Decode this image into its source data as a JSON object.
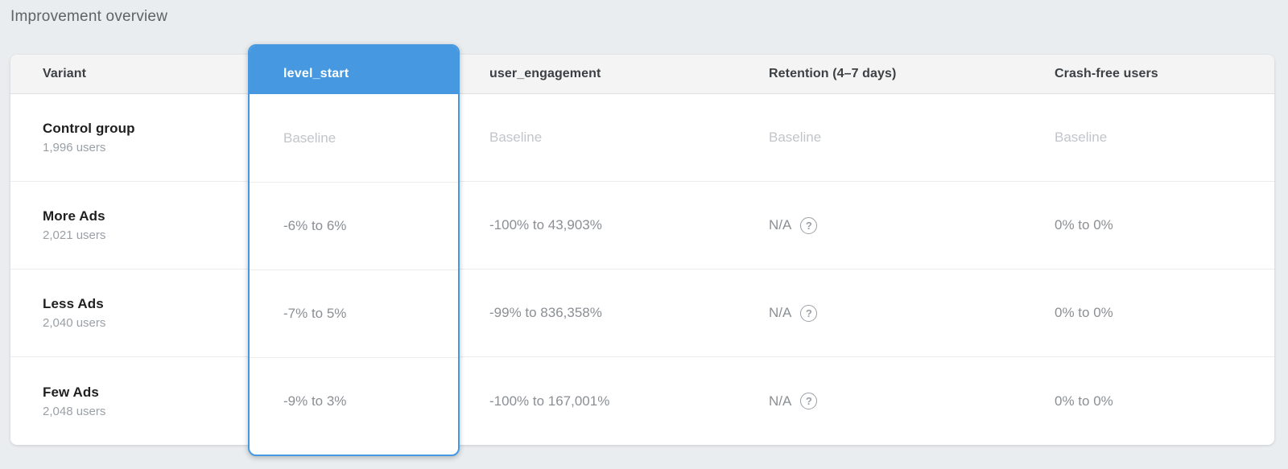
{
  "page": {
    "title": "Improvement overview"
  },
  "colors": {
    "accent_blue": "#4699e0",
    "page_background": "#e9edef",
    "header_row_background": "#f4f4f5"
  },
  "icons": {
    "help_glyph": "?"
  },
  "table": {
    "selected_metric": "level_start",
    "columns": {
      "variant": "Variant",
      "level_start": "level_start",
      "user_engagement": "user_engagement",
      "retention": "Retention (4–7 days)",
      "crash_free": "Crash-free users"
    },
    "rows": [
      {
        "variant": "Control group",
        "users": "1,996 users",
        "level_start": "Baseline",
        "user_engagement": "Baseline",
        "retention": "Baseline",
        "crash_free": "Baseline"
      },
      {
        "variant": "More Ads",
        "users": "2,021 users",
        "level_start": "-6% to 6%",
        "user_engagement": "-100% to 43,903%",
        "retention": "N/A",
        "crash_free": "0% to 0%"
      },
      {
        "variant": "Less Ads",
        "users": "2,040 users",
        "level_start": "-7% to 5%",
        "user_engagement": "-99% to 836,358%",
        "retention": "N/A",
        "crash_free": "0% to 0%"
      },
      {
        "variant": "Few Ads",
        "users": "2,048 users",
        "level_start": "-9% to 3%",
        "user_engagement": "-100% to 167,001%",
        "retention": "N/A",
        "crash_free": "0% to 0%"
      }
    ]
  }
}
